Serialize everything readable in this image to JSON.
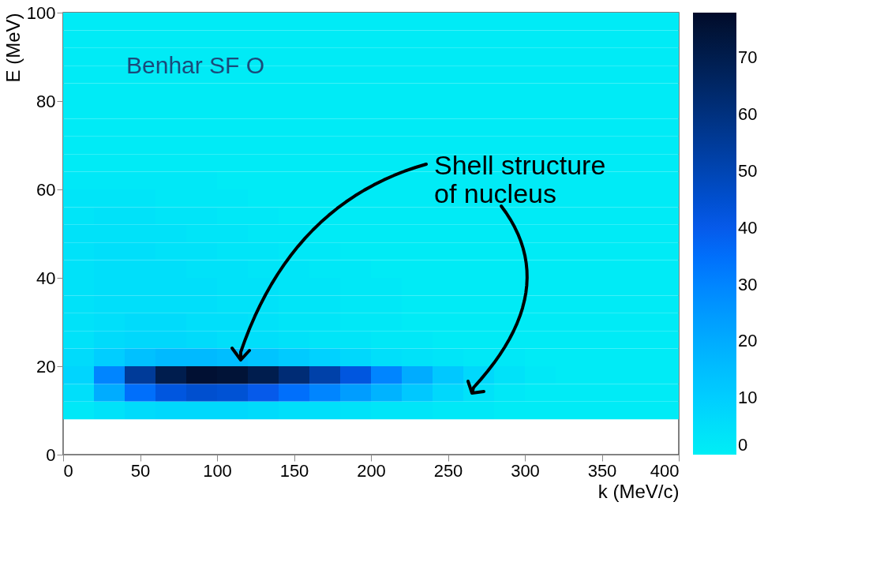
{
  "chart_data": {
    "type": "heatmap",
    "xlabel": "k (MeV/c)",
    "ylabel": "E (MeV)",
    "x": [
      10,
      30,
      50,
      70,
      90,
      110,
      130,
      150,
      170,
      190,
      210,
      230,
      250,
      270,
      290,
      310,
      330,
      350,
      370,
      390
    ],
    "y": [
      98,
      94,
      90,
      86,
      82,
      78,
      74,
      70,
      66,
      62,
      58,
      54,
      50,
      46,
      42,
      38,
      34,
      30,
      26,
      22,
      18,
      14,
      10
    ],
    "xlim": [
      0,
      400
    ],
    "xticks": [
      0,
      50,
      100,
      150,
      200,
      250,
      300,
      350,
      400
    ],
    "ylim": [
      0,
      100
    ],
    "yticks": [
      0,
      20,
      40,
      60,
      80,
      100
    ],
    "clim": [
      0,
      78
    ],
    "cticks": [
      0,
      10,
      20,
      30,
      40,
      50,
      60,
      70
    ],
    "cells": [
      [
        1,
        1,
        1,
        1,
        1,
        1,
        1,
        1,
        1,
        1,
        1,
        1,
        1,
        1,
        1,
        1,
        1,
        1,
        1,
        1
      ],
      [
        1,
        1,
        1,
        1,
        1,
        1,
        1,
        1,
        1,
        1,
        1,
        1,
        1,
        1,
        1,
        1,
        1,
        1,
        1,
        1
      ],
      [
        1,
        1,
        1,
        1,
        1,
        1,
        1,
        1,
        1,
        1,
        1,
        1,
        1,
        1,
        1,
        1,
        1,
        1,
        1,
        1
      ],
      [
        1,
        1,
        1,
        1,
        1,
        1,
        1,
        1,
        1,
        1,
        1,
        1,
        1,
        1,
        1,
        1,
        1,
        1,
        1,
        1
      ],
      [
        1,
        1,
        1,
        1,
        1,
        1,
        1,
        1,
        1,
        1,
        1,
        1,
        1,
        1,
        1,
        1,
        1,
        1,
        1,
        1
      ],
      [
        1,
        1,
        1,
        1,
        1,
        1,
        1,
        1,
        1,
        1,
        1,
        1,
        1,
        1,
        1,
        1,
        1,
        1,
        1,
        1
      ],
      [
        1,
        1,
        1,
        1,
        1,
        1,
        1,
        1,
        1,
        1,
        1,
        1,
        1,
        1,
        1,
        1,
        1,
        1,
        1,
        1
      ],
      [
        1,
        1,
        1,
        1,
        1,
        1,
        1,
        1,
        1,
        1,
        1,
        1,
        1,
        1,
        1,
        1,
        1,
        1,
        1,
        1
      ],
      [
        1,
        1,
        1,
        1,
        1,
        1,
        1,
        1,
        1,
        1,
        1,
        1,
        1,
        1,
        1,
        1,
        1,
        1,
        1,
        1
      ],
      [
        2,
        2,
        2,
        2,
        2,
        1,
        1,
        1,
        1,
        1,
        1,
        1,
        1,
        1,
        1,
        1,
        1,
        1,
        1,
        1
      ],
      [
        3,
        3,
        3,
        2,
        2,
        2,
        1,
        1,
        1,
        1,
        1,
        1,
        1,
        1,
        1,
        1,
        1,
        1,
        1,
        1
      ],
      [
        3,
        4,
        4,
        3,
        3,
        2,
        2,
        1,
        1,
        1,
        1,
        1,
        1,
        1,
        1,
        1,
        1,
        1,
        1,
        1
      ],
      [
        4,
        4,
        4,
        4,
        3,
        3,
        2,
        2,
        1,
        1,
        1,
        1,
        1,
        1,
        1,
        1,
        1,
        1,
        1,
        1
      ],
      [
        4,
        5,
        5,
        4,
        4,
        3,
        3,
        2,
        2,
        1,
        1,
        1,
        1,
        1,
        1,
        1,
        1,
        1,
        1,
        1
      ],
      [
        4,
        5,
        5,
        5,
        4,
        4,
        3,
        3,
        2,
        2,
        1,
        1,
        1,
        1,
        1,
        1,
        1,
        1,
        1,
        1
      ],
      [
        4,
        5,
        5,
        5,
        5,
        4,
        4,
        3,
        3,
        2,
        2,
        1,
        1,
        1,
        1,
        1,
        1,
        1,
        1,
        1
      ],
      [
        4,
        5,
        5,
        5,
        5,
        4,
        4,
        3,
        3,
        2,
        2,
        1,
        1,
        1,
        1,
        1,
        1,
        1,
        1,
        1
      ],
      [
        4,
        5,
        6,
        6,
        5,
        5,
        4,
        3,
        3,
        2,
        2,
        1,
        1,
        1,
        1,
        1,
        1,
        1,
        1,
        1
      ],
      [
        4,
        6,
        7,
        7,
        6,
        5,
        5,
        4,
        3,
        3,
        2,
        2,
        1,
        1,
        1,
        1,
        1,
        1,
        1,
        1
      ],
      [
        6,
        10,
        14,
        16,
        16,
        15,
        13,
        11,
        9,
        7,
        5,
        4,
        3,
        2,
        2,
        1,
        1,
        1,
        1,
        1
      ],
      [
        8,
        30,
        55,
        70,
        76,
        75,
        70,
        62,
        52,
        42,
        30,
        20,
        12,
        7,
        4,
        2,
        1,
        1,
        1,
        1
      ],
      [
        5,
        20,
        35,
        42,
        45,
        44,
        40,
        35,
        30,
        24,
        18,
        12,
        7,
        4,
        2,
        1,
        1,
        1,
        1,
        1
      ],
      [
        2,
        4,
        6,
        7,
        7,
        7,
        6,
        5,
        5,
        4,
        3,
        3,
        2,
        2,
        1,
        1,
        1,
        1,
        1,
        1
      ]
    ],
    "annotations": [
      "Benhar SF O",
      "Shell structure\nof nucleus"
    ],
    "grid": false
  }
}
